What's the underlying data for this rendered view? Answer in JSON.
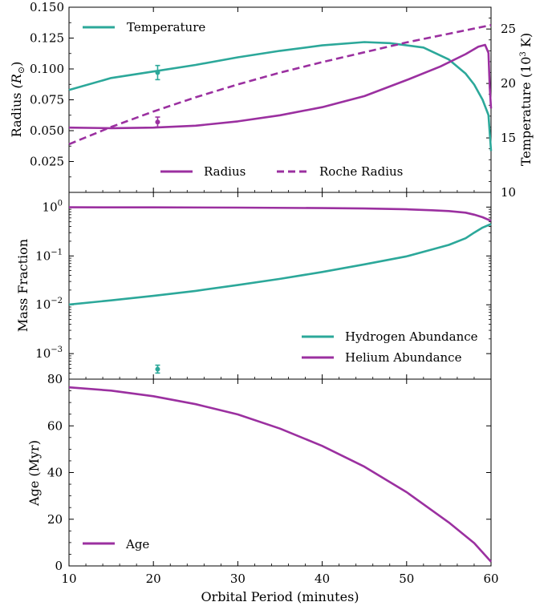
{
  "colors": {
    "teal": "#2ca89a",
    "purple": "#9b30a0"
  },
  "chart_data": [
    {
      "type": "line",
      "panel": "top",
      "xlim": [
        10,
        60
      ],
      "ylabel_left": "Radius ",
      "ylabel_left_sym": "(R",
      "ylabel_left_sub": "⊙",
      "ylabel_left_close": ")",
      "ylabel_right": "Temperature (10",
      "ylabel_right_sup": "3",
      "ylabel_right_close": " K)",
      "ylim_left": [
        0.0,
        0.15
      ],
      "ylim_right": [
        10,
        27
      ],
      "yticks_left": [
        "0.025",
        "0.050",
        "0.075",
        "0.100",
        "0.125",
        "0.150"
      ],
      "yticks_right": [
        "10",
        "15",
        "20",
        "25"
      ],
      "series": [
        {
          "name": "Temperature",
          "axis": "right",
          "style": "solid",
          "color": "teal",
          "x": [
            10,
            15,
            20,
            25,
            30,
            35,
            40,
            45,
            48,
            52,
            55,
            57,
            58,
            59,
            59.7,
            60
          ],
          "y": [
            19.4,
            20.5,
            21.1,
            21.7,
            22.4,
            23.0,
            23.5,
            23.8,
            23.7,
            23.3,
            22.2,
            20.9,
            19.9,
            18.5,
            17.1,
            13.8
          ]
        },
        {
          "name": "Radius",
          "axis": "left",
          "style": "solid",
          "color": "purple",
          "x": [
            10,
            15,
            20,
            25,
            30,
            35,
            40,
            45,
            50,
            54,
            57,
            58.5,
            59.3,
            59.7,
            59.85,
            60
          ],
          "y": [
            0.0525,
            0.052,
            0.0525,
            0.054,
            0.0575,
            0.0625,
            0.069,
            0.078,
            0.091,
            0.102,
            0.112,
            0.118,
            0.1195,
            0.113,
            0.085,
            0.068
          ]
        },
        {
          "name": "Roche Radius",
          "axis": "left",
          "style": "dashed",
          "color": "purple",
          "x": [
            10,
            15,
            20,
            25,
            30,
            35,
            40,
            45,
            50,
            55,
            60
          ],
          "y": [
            0.039,
            0.053,
            0.0655,
            0.077,
            0.0875,
            0.097,
            0.1055,
            0.1135,
            0.1215,
            0.1285,
            0.1355
          ]
        }
      ],
      "points": [
        {
          "series": "Temperature",
          "x": 20.5,
          "y": 21.0,
          "yerr": 0.65
        },
        {
          "series": "Radius",
          "x": 20.5,
          "y": 0.057,
          "yerr": 0.004
        }
      ],
      "legend": [
        {
          "label": "Temperature",
          "placement": "top-left"
        },
        {
          "label": "Radius",
          "placement": "bottom-center"
        },
        {
          "label": "Roche Radius",
          "placement": "bottom-center"
        }
      ]
    },
    {
      "type": "line",
      "panel": "middle",
      "xlim": [
        10,
        60
      ],
      "yscale": "log",
      "ylim": [
        0.0003,
        2.0
      ],
      "ylabel": "Mass Fraction",
      "yticks": [
        {
          "base": "10",
          "exp": "0",
          "value": 1
        },
        {
          "base": "10",
          "exp": "−1",
          "value": 0.1
        },
        {
          "base": "10",
          "exp": "−2",
          "value": 0.01
        },
        {
          "base": "10",
          "exp": "−3",
          "value": 0.001
        }
      ],
      "series": [
        {
          "name": "Hydrogen Abundance",
          "color": "teal",
          "x": [
            10,
            15,
            20,
            25,
            30,
            35,
            40,
            45,
            50,
            53,
            55,
            57,
            58,
            59,
            60
          ],
          "y": [
            0.0101,
            0.0123,
            0.0152,
            0.0192,
            0.0253,
            0.0339,
            0.0469,
            0.0671,
            0.098,
            0.135,
            0.168,
            0.23,
            0.3,
            0.38,
            0.45
          ]
        },
        {
          "name": "Helium Abundance",
          "color": "purple",
          "x": [
            10,
            20,
            30,
            40,
            45,
            50,
            53,
            55,
            57,
            58,
            59,
            60
          ],
          "y": [
            0.99,
            0.985,
            0.975,
            0.955,
            0.935,
            0.902,
            0.862,
            0.83,
            0.77,
            0.7,
            0.62,
            0.52
          ]
        }
      ],
      "points": [
        {
          "series": "Hydrogen Abundance",
          "x": 20.5,
          "y": 0.00048,
          "yerr_lo": 0.0004,
          "yerr_hi": 0.00058
        }
      ],
      "legend": [
        {
          "label": "Hydrogen Abundance",
          "placement": "bottom-right"
        },
        {
          "label": "Helium Abundance",
          "placement": "bottom-right"
        }
      ]
    },
    {
      "type": "line",
      "panel": "bottom",
      "xlim": [
        10,
        60
      ],
      "ylim": [
        0,
        80
      ],
      "xlabel": "Orbital Period (minutes)",
      "ylabel": "Age (Myr)",
      "xticks": [
        "10",
        "20",
        "30",
        "40",
        "50",
        "60"
      ],
      "yticks": [
        "0",
        "20",
        "40",
        "60",
        "80"
      ],
      "series": [
        {
          "name": "Age",
          "color": "purple",
          "x": [
            10,
            15,
            20,
            25,
            30,
            35,
            40,
            45,
            50,
            55,
            58,
            60
          ],
          "y": [
            76.5,
            75.1,
            72.7,
            69.3,
            64.9,
            58.8,
            51.4,
            42.5,
            31.6,
            18.6,
            9.8,
            1.8
          ]
        }
      ],
      "legend": [
        {
          "label": "Age",
          "placement": "bottom-left"
        }
      ]
    }
  ]
}
